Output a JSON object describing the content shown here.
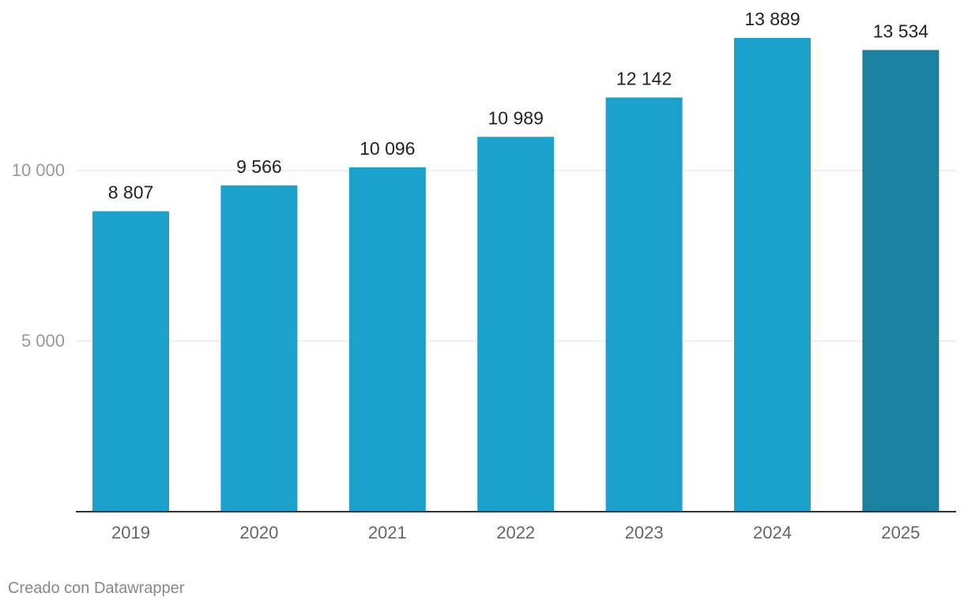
{
  "chart_data": {
    "type": "bar",
    "title": "",
    "xlabel": "",
    "ylabel": "",
    "categories": [
      "2019",
      "2020",
      "2021",
      "2022",
      "2023",
      "2024",
      "2025"
    ],
    "values": [
      8807,
      9566,
      10096,
      10989,
      12142,
      13889,
      13534
    ],
    "value_labels": [
      "8 807",
      "9 566",
      "10 096",
      "10 989",
      "12 142",
      "13 889",
      "13 534"
    ],
    "ylim": [
      0,
      13889
    ],
    "yticks": [
      {
        "value": 5000,
        "label": "5 000"
      },
      {
        "value": 10000,
        "label": "10 000"
      }
    ],
    "grid": true,
    "colors": {
      "bar": "#1aa1cc",
      "highlight": "#1c80a0",
      "highlight_category": "2025",
      "grid": "#e0e0e0",
      "baseline": "#333333",
      "tick_text": "#999999",
      "category_text": "#666666",
      "value_text": "#222222"
    }
  },
  "footer": {
    "credit": "Creado con Datawrapper"
  }
}
